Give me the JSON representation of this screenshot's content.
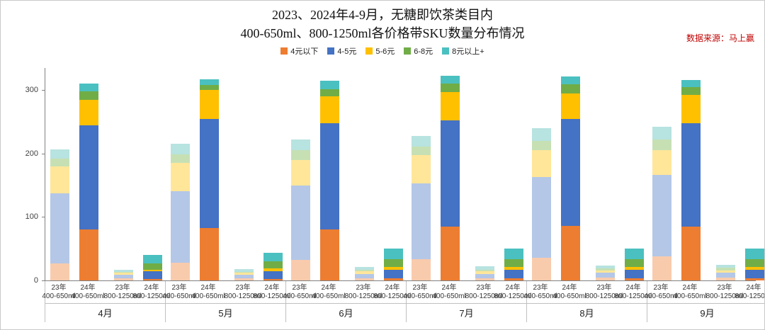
{
  "title": {
    "line1": "2023、2024年4-9月，无糖即饮茶类目内",
    "line2": "400-650ml、800-1250ml各价格带SKU数量分布情况"
  },
  "source_note": "数据来源：马上赢",
  "legend": {
    "items": [
      {
        "label": "4元以下",
        "color": "#ED7D31"
      },
      {
        "label": "4-5元",
        "color": "#4472C4"
      },
      {
        "label": "5-6元",
        "color": "#FFC000"
      },
      {
        "label": "6-8元",
        "color": "#70AD47"
      },
      {
        "label": "8元以上+",
        "color": "#4BC0C0"
      }
    ]
  },
  "chart_data": {
    "type": "bar",
    "stacked": true,
    "title": "2023、2024年4-9月，无糖即饮茶类目内 400-650ml、800-1250ml各价格带SKU数量分布情况",
    "months": [
      "4月",
      "5月",
      "6月",
      "7月",
      "8月",
      "9月"
    ],
    "price_bands": [
      "4元以下",
      "4-5元",
      "5-6元",
      "6-8元",
      "8元以上+"
    ],
    "palette_2024": [
      "#ED7D31",
      "#4472C4",
      "#FFC000",
      "#70AD47",
      "#4BC0C0"
    ],
    "palette_2023": [
      "#F8CBAD",
      "#B4C7E7",
      "#FFE699",
      "#C6E0B4",
      "#B7E3E0"
    ],
    "yticks": [
      0,
      100,
      200,
      300
    ],
    "ylim": [
      0,
      335
    ],
    "bar_defs": [
      {
        "line1": "23年",
        "line2": "400-650ml",
        "palette": "palette_2023"
      },
      {
        "line1": "24年",
        "line2": "400-650ml",
        "palette": "palette_2024"
      },
      {
        "line1": "23年",
        "line2": "800-1250ml",
        "palette": "palette_2023"
      },
      {
        "line1": "24年",
        "line2": "800-1250ml",
        "palette": "palette_2024"
      }
    ],
    "values": [
      {
        "month": "4月",
        "bars": [
          [
            27,
            110,
            43,
            12,
            15
          ],
          [
            80,
            165,
            40,
            13,
            12
          ],
          [
            3,
            6,
            3,
            2,
            3
          ],
          [
            2,
            12,
            3,
            10,
            13
          ]
        ]
      },
      {
        "month": "5月",
        "bars": [
          [
            28,
            113,
            44,
            14,
            17
          ],
          [
            83,
            172,
            45,
            8,
            9
          ],
          [
            3,
            6,
            3,
            2,
            4
          ],
          [
            2,
            13,
            4,
            11,
            14
          ]
        ]
      },
      {
        "month": "6月",
        "bars": [
          [
            32,
            118,
            40,
            15,
            17
          ],
          [
            80,
            168,
            42,
            12,
            13
          ],
          [
            3,
            7,
            4,
            3,
            4
          ],
          [
            3,
            14,
            4,
            13,
            16
          ]
        ]
      },
      {
        "month": "7月",
        "bars": [
          [
            33,
            120,
            45,
            13,
            17
          ],
          [
            85,
            167,
            45,
            13,
            13
          ],
          [
            3,
            7,
            4,
            3,
            5
          ],
          [
            3,
            14,
            4,
            13,
            16
          ]
        ]
      },
      {
        "month": "8月",
        "bars": [
          [
            36,
            127,
            42,
            15,
            20
          ],
          [
            86,
            169,
            40,
            14,
            13
          ],
          [
            4,
            8,
            4,
            3,
            5
          ],
          [
            3,
            14,
            4,
            13,
            16
          ]
        ]
      },
      {
        "month": "9月",
        "bars": [
          [
            38,
            128,
            40,
            16,
            20
          ],
          [
            85,
            163,
            45,
            12,
            11
          ],
          [
            4,
            8,
            4,
            4,
            5
          ],
          [
            3,
            14,
            4,
            13,
            16
          ]
        ]
      }
    ]
  }
}
